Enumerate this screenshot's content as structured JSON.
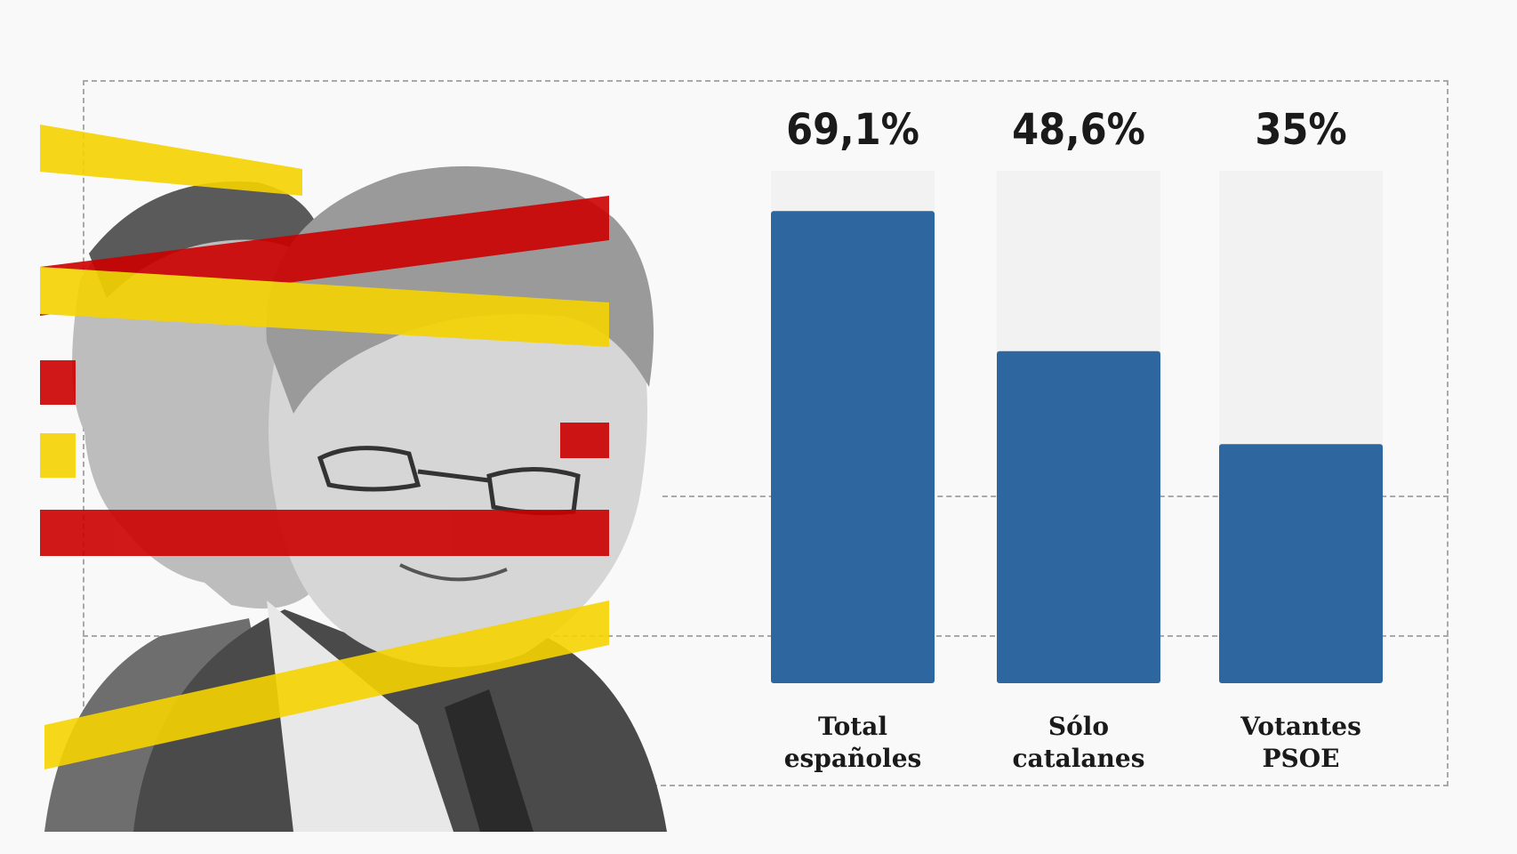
{
  "colors": {
    "bar": "#2e67a0",
    "track": "#f2f2f2",
    "red_stripe": "#cc0000",
    "yellow_stripe": "#f5d300",
    "text": "#1a1a1a"
  },
  "chart_data": {
    "type": "bar",
    "categories": [
      "Total españoles",
      "Sólo catalanes",
      "Votantes PSOE"
    ],
    "category_lines": [
      [
        "Total",
        "españoles"
      ],
      [
        "Sólo",
        "catalanes"
      ],
      [
        "Votantes",
        "PSOE"
      ]
    ],
    "values": [
      69.1,
      48.6,
      35
    ],
    "value_labels": [
      "69,1%",
      "48,6%",
      "35%"
    ],
    "ylim": [
      0,
      75
    ],
    "unit": "%",
    "title": "",
    "xlabel": "",
    "ylabel": ""
  },
  "photo": {
    "icon": "portrait-collage-icon"
  }
}
